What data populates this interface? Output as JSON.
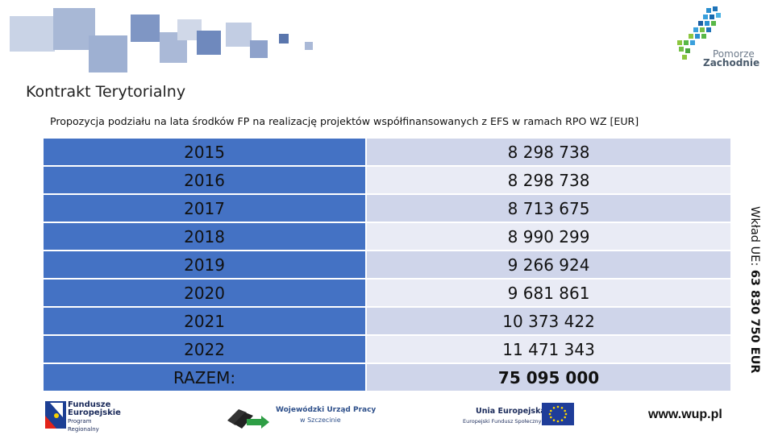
{
  "header": {
    "logo": {
      "line1": "Pomorze",
      "line2": "Zachodnie"
    },
    "title": "Kontrakt Terytorialny",
    "subtitle": "Propozycja podziału na lata środków FP na realizację projektów współfinansowanych z EFS w ramach RPO WZ [EUR]"
  },
  "table": {
    "rows": [
      {
        "year": "2015",
        "value": "8 298 738"
      },
      {
        "year": "2016",
        "value": "8 298 738"
      },
      {
        "year": "2017",
        "value": "8 713 675"
      },
      {
        "year": "2018",
        "value": "8 990 299"
      },
      {
        "year": "2019",
        "value": "9 266 924"
      },
      {
        "year": "2020",
        "value": "9 681 861"
      },
      {
        "year": "2021",
        "value": "10 373 422"
      },
      {
        "year": "2022",
        "value": "11 471 343"
      }
    ],
    "total_label": "RAZEM:",
    "total_value": "75 095 000"
  },
  "side_note": {
    "prefix": "Wkład UE: ",
    "amount": "63 830 750 EUR"
  },
  "footer": {
    "fe_line1": "Fundusze",
    "fe_line2": "Europejskie",
    "fe_line3": "Program Regionalny",
    "wup_line1": "Wojewódzki Urząd Pracy",
    "wup_line2": "w Szczecinie",
    "ue_line1": "Unia Europejska",
    "ue_line2": "Europejski Fundusz Społeczny",
    "url": "www.wup.pl"
  },
  "colors": {
    "year_cell": "#4472c4",
    "value_odd": "#cfd5ea",
    "value_even": "#e9ebf5"
  }
}
